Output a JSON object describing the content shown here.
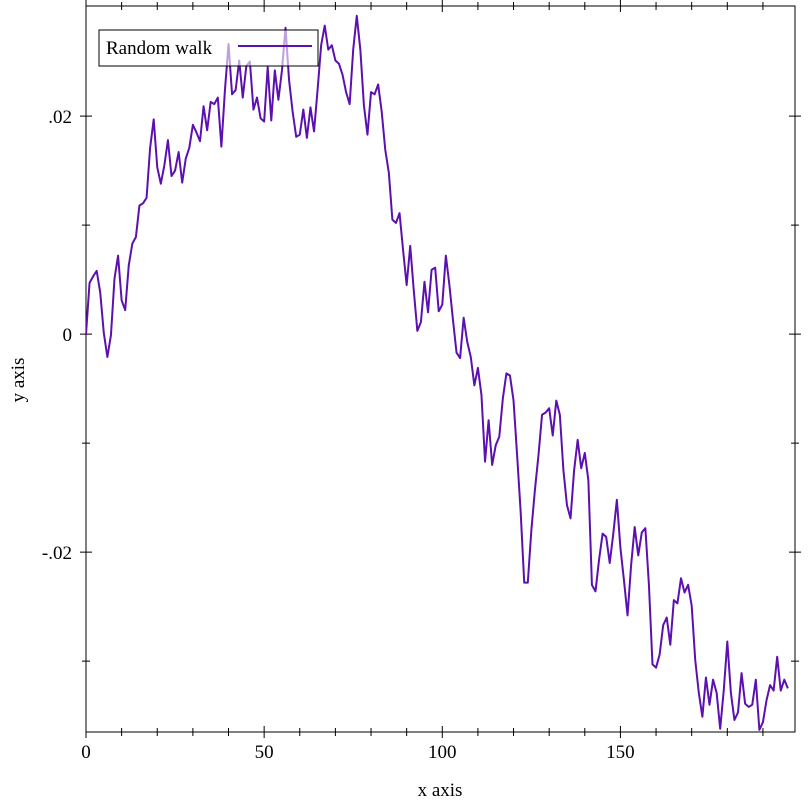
{
  "chart_data": {
    "type": "line",
    "xlabel": "x axis",
    "ylabel": "y axis",
    "xlim": [
      0,
      199
    ],
    "ylim": [
      -0.0365,
      0.0301
    ],
    "xticks": [
      0,
      50,
      100,
      150
    ],
    "xminorticks": [
      10,
      20,
      30,
      40,
      60,
      70,
      80,
      90,
      110,
      120,
      130,
      140,
      160,
      170,
      180,
      190
    ],
    "yticks": [
      {
        "value": -0.02,
        "label": "-.02"
      },
      0,
      {
        "value": 0.02,
        "label": ".02"
      }
    ],
    "yminorticks": [
      -0.03,
      -0.01,
      0.01
    ],
    "legend": "top-left",
    "x": [
      0,
      1,
      2,
      3,
      4,
      5,
      6,
      7,
      8,
      9,
      10,
      11,
      12,
      13,
      14,
      15,
      16,
      17,
      18,
      19,
      20,
      21,
      22,
      23,
      24,
      25,
      26,
      27,
      28,
      29,
      30,
      31,
      32,
      33,
      34,
      35,
      36,
      37,
      38,
      39,
      40,
      41,
      42,
      43,
      44,
      45,
      46,
      47,
      48,
      49,
      50,
      51,
      52,
      53,
      54,
      55,
      56,
      57,
      58,
      59,
      60,
      61,
      62,
      63,
      64,
      65,
      66,
      67,
      68,
      69,
      70,
      71,
      72,
      73,
      74,
      75,
      76,
      77,
      78,
      79,
      80,
      81,
      82,
      83,
      84,
      85,
      86,
      87,
      88,
      89,
      90,
      91,
      92,
      93,
      94,
      95,
      96,
      97,
      98,
      99,
      100,
      101,
      102,
      103,
      104,
      105,
      106,
      107,
      108,
      109,
      110,
      111,
      112,
      113,
      114,
      115,
      116,
      117,
      118,
      119,
      120,
      121,
      122,
      123,
      124,
      125,
      126,
      127,
      128,
      129,
      130,
      131,
      132,
      133,
      134,
      135,
      136,
      137,
      138,
      139,
      140,
      141,
      142,
      143,
      144,
      145,
      146,
      147,
      148,
      149,
      150,
      151,
      152,
      153,
      154,
      155,
      156,
      157,
      158,
      159,
      160,
      161,
      162,
      163,
      164,
      165,
      166,
      167,
      168,
      169,
      170,
      171,
      172,
      173,
      174,
      175,
      176,
      177,
      178,
      179,
      180,
      181,
      182,
      183,
      184,
      185,
      186,
      187,
      188,
      189,
      190,
      191,
      192,
      193,
      194,
      195,
      196,
      197
    ],
    "series": [
      {
        "name": "Random walk",
        "color": "#5c10b0",
        "values": [
          0,
          0.0047,
          0.0053,
          0.0058,
          0.0038,
          0.0001,
          -0.0021,
          -0.0001,
          0.0051,
          0.0072,
          0.0031,
          0.0022,
          0.0063,
          0.0083,
          0.0089,
          0.0118,
          0.012,
          0.0125,
          0.0171,
          0.0197,
          0.0153,
          0.0138,
          0.0155,
          0.0178,
          0.0145,
          0.015,
          0.0167,
          0.0139,
          0.0161,
          0.0171,
          0.0192,
          0.0185,
          0.0177,
          0.0209,
          0.0187,
          0.0213,
          0.0211,
          0.0217,
          0.0172,
          0.0224,
          0.0266,
          0.022,
          0.0224,
          0.0251,
          0.0217,
          0.0246,
          0.025,
          0.0206,
          0.0217,
          0.0198,
          0.0195,
          0.0245,
          0.0196,
          0.0242,
          0.0215,
          0.0242,
          0.0281,
          0.0233,
          0.0204,
          0.0181,
          0.0183,
          0.0206,
          0.018,
          0.0208,
          0.0186,
          0.0224,
          0.0265,
          0.0283,
          0.0261,
          0.0265,
          0.0251,
          0.0248,
          0.0238,
          0.0222,
          0.0211,
          0.0261,
          0.0292,
          0.0261,
          0.021,
          0.0183,
          0.0222,
          0.022,
          0.0229,
          0.0204,
          0.0169,
          0.0148,
          0.0105,
          0.0102,
          0.0111,
          0.0077,
          0.0045,
          0.0081,
          0.004,
          0.0003,
          0.0011,
          0.0048,
          0.002,
          0.0059,
          0.0061,
          0.0021,
          0.0027,
          0.0072,
          0.0045,
          0.0013,
          -0.0017,
          -0.0022,
          0.0015,
          -0.0007,
          -0.0021,
          -0.0047,
          -0.0031,
          -0.0056,
          -0.0117,
          -0.0079,
          -0.012,
          -0.0102,
          -0.0094,
          -0.0059,
          -0.0036,
          -0.0038,
          -0.0061,
          -0.0111,
          -0.0163,
          -0.0228,
          -0.0228,
          -0.018,
          -0.0143,
          -0.0111,
          -0.0074,
          -0.0072,
          -0.0068,
          -0.0093,
          -0.0061,
          -0.0074,
          -0.0125,
          -0.0157,
          -0.0169,
          -0.0125,
          -0.0097,
          -0.0123,
          -0.0109,
          -0.0134,
          -0.023,
          -0.0236,
          -0.0207,
          -0.0183,
          -0.0186,
          -0.021,
          -0.0183,
          -0.0152,
          -0.0196,
          -0.0226,
          -0.0258,
          -0.0212,
          -0.0177,
          -0.0203,
          -0.0182,
          -0.0178,
          -0.023,
          -0.0303,
          -0.0306,
          -0.0294,
          -0.0267,
          -0.026,
          -0.0285,
          -0.0244,
          -0.0247,
          -0.0224,
          -0.0237,
          -0.023,
          -0.0249,
          -0.0299,
          -0.0329,
          -0.0351,
          -0.0315,
          -0.034,
          -0.0317,
          -0.0329,
          -0.0362,
          -0.0327,
          -0.0282,
          -0.0329,
          -0.0354,
          -0.0347,
          -0.0311,
          -0.0339,
          -0.0342,
          -0.034,
          -0.0317,
          -0.0363,
          -0.0356,
          -0.0336,
          -0.0322,
          -0.0327,
          -0.0296,
          -0.0327,
          -0.0317,
          -0.0325
        ]
      }
    ]
  }
}
